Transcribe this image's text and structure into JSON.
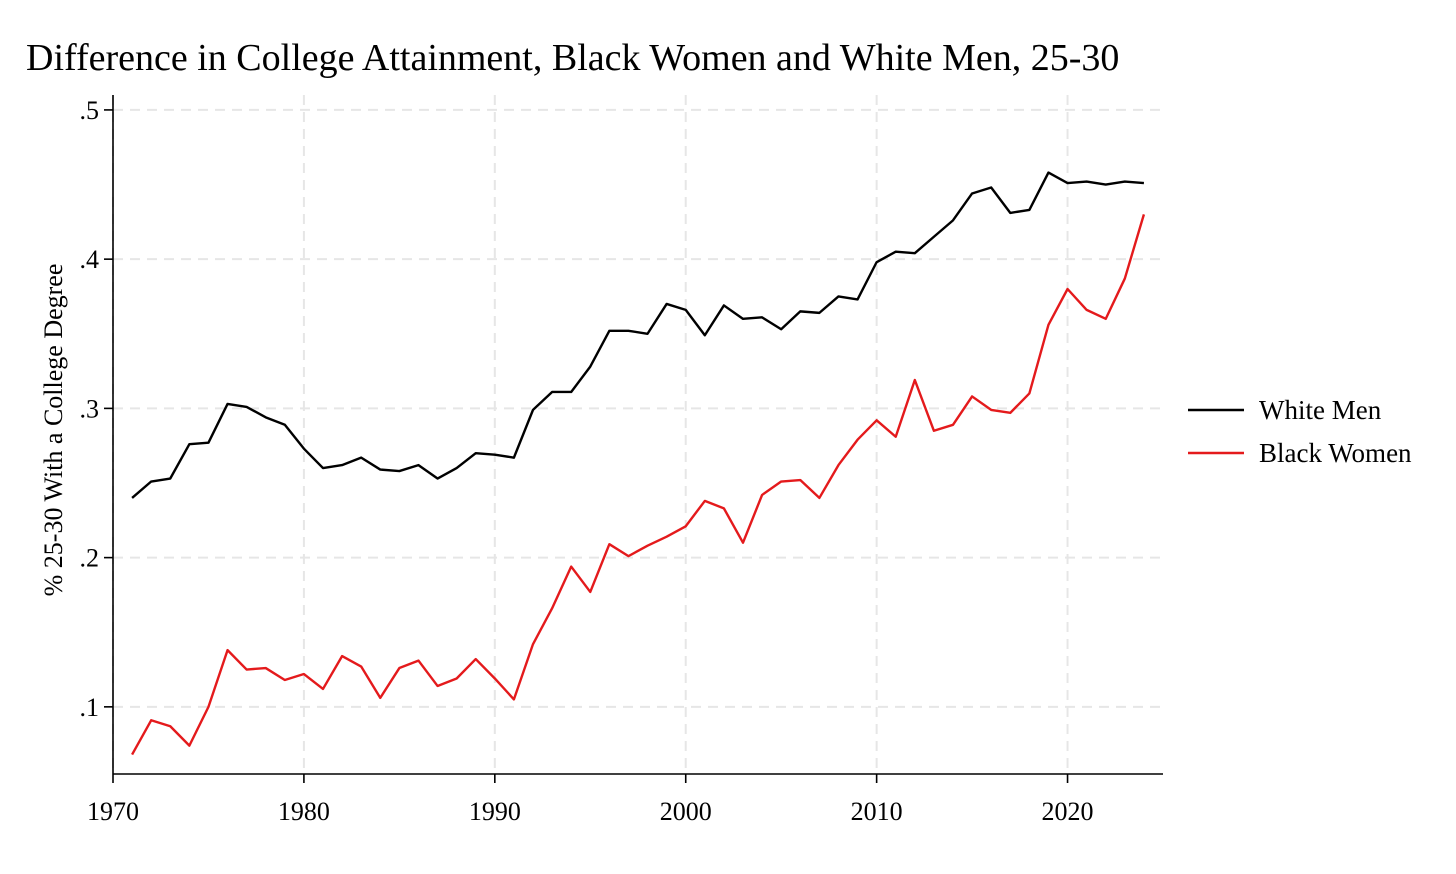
{
  "chart_data": {
    "type": "line",
    "title": "Difference in College Attainment, Black Women and White Men, 25-30",
    "xlabel": "",
    "ylabel": "% 25-30 With a College Degree",
    "xlim": [
      1970,
      2025
    ],
    "ylim": [
      0.055,
      0.51
    ],
    "x_ticks": [
      1970,
      1980,
      1990,
      2000,
      2010,
      2020
    ],
    "y_ticks": [
      0.1,
      0.2,
      0.3,
      0.4,
      0.5
    ],
    "y_tick_labels": [
      ".1",
      ".2",
      ".3",
      ".4",
      ".5"
    ],
    "grid": true,
    "legend_position": "right",
    "x": [
      1971,
      1972,
      1973,
      1974,
      1975,
      1976,
      1977,
      1978,
      1979,
      1980,
      1981,
      1982,
      1983,
      1984,
      1985,
      1986,
      1987,
      1988,
      1989,
      1990,
      1991,
      1992,
      1993,
      1994,
      1995,
      1996,
      1997,
      1998,
      1999,
      2000,
      2001,
      2002,
      2003,
      2004,
      2005,
      2006,
      2007,
      2008,
      2009,
      2010,
      2011,
      2012,
      2013,
      2014,
      2015,
      2016,
      2017,
      2018,
      2019,
      2020,
      2021,
      2022,
      2023,
      2024
    ],
    "series": [
      {
        "name": "White Men",
        "color": "#000000",
        "values": [
          0.24,
          0.251,
          0.253,
          0.276,
          0.277,
          0.303,
          0.301,
          0.294,
          0.289,
          0.273,
          0.26,
          0.262,
          0.267,
          0.259,
          0.258,
          0.262,
          0.253,
          0.26,
          0.27,
          0.269,
          0.267,
          0.299,
          0.311,
          0.311,
          0.328,
          0.352,
          0.352,
          0.35,
          0.37,
          0.366,
          0.349,
          0.369,
          0.36,
          0.361,
          0.353,
          0.365,
          0.364,
          0.375,
          0.373,
          0.398,
          0.405,
          0.404,
          0.415,
          0.426,
          0.444,
          0.448,
          0.431,
          0.433,
          0.458,
          0.451,
          0.452,
          0.45,
          0.452,
          0.451
        ]
      },
      {
        "name": "Black Women",
        "color": "#e41a1c",
        "values": [
          0.068,
          0.091,
          0.087,
          0.074,
          0.1,
          0.138,
          0.125,
          0.126,
          0.118,
          0.122,
          0.112,
          0.134,
          0.127,
          0.106,
          0.126,
          0.131,
          0.114,
          0.119,
          0.132,
          0.119,
          0.105,
          0.142,
          0.166,
          0.194,
          0.177,
          0.209,
          0.201,
          0.208,
          0.214,
          0.221,
          0.238,
          0.233,
          0.21,
          0.242,
          0.251,
          0.252,
          0.24,
          0.262,
          0.279,
          0.292,
          0.281,
          0.319,
          0.285,
          0.289,
          0.308,
          0.299,
          0.297,
          0.31,
          0.356,
          0.38,
          0.366,
          0.36,
          0.387,
          0.43
        ]
      }
    ]
  }
}
